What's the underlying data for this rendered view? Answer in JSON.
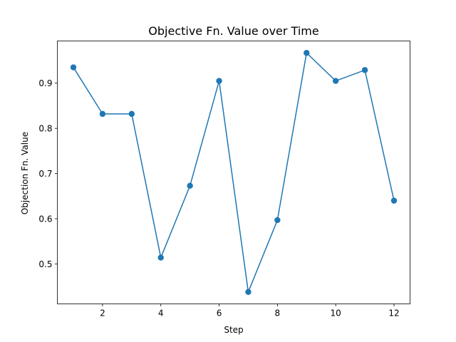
{
  "chart_data": {
    "type": "line",
    "title": "Objective Fn. Value over Time",
    "xlabel": "Step",
    "ylabel": "Objection Fn. Value",
    "x": [
      1,
      2,
      3,
      4,
      5,
      6,
      7,
      8,
      9,
      10,
      11,
      12
    ],
    "series": [
      {
        "values": [
          0.935,
          0.832,
          0.832,
          0.514,
          0.673,
          0.905,
          0.438,
          0.597,
          0.967,
          0.905,
          0.929,
          0.64
        ],
        "color": "#1f77b4",
        "marker": "circle"
      }
    ],
    "xlim": [
      0.45,
      12.55
    ],
    "ylim": [
      0.4116,
      0.9934
    ],
    "xticks": [
      2,
      4,
      6,
      8,
      10,
      12
    ],
    "xtick_labels": [
      "2",
      "4",
      "6",
      "8",
      "10",
      "12"
    ],
    "yticks": [
      0.5,
      0.6,
      0.7,
      0.8,
      0.9
    ],
    "ytick_labels": [
      "0.5",
      "0.6",
      "0.7",
      "0.8",
      "0.9"
    ],
    "grid": false,
    "legend": "none"
  }
}
